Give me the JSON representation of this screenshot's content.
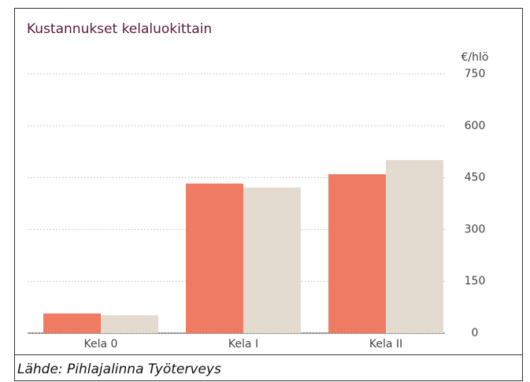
{
  "chart_data": {
    "type": "bar",
    "title": "Kustannukset kelaluokittain",
    "y_unit": "€/hlö",
    "categories": [
      "Kela 0",
      "Kela I",
      "Kela II"
    ],
    "series": [
      {
        "color": "#f07b63",
        "values": [
          57,
          433,
          460
        ]
      },
      {
        "color": "#e3dbd0",
        "values": [
          52,
          422,
          501
        ]
      }
    ],
    "ylim": [
      0,
      750
    ],
    "yticks": [
      0,
      150,
      300,
      450,
      600,
      750
    ],
    "grid": true
  },
  "caption": "Lähde: Pihlajalinna Työterveys"
}
